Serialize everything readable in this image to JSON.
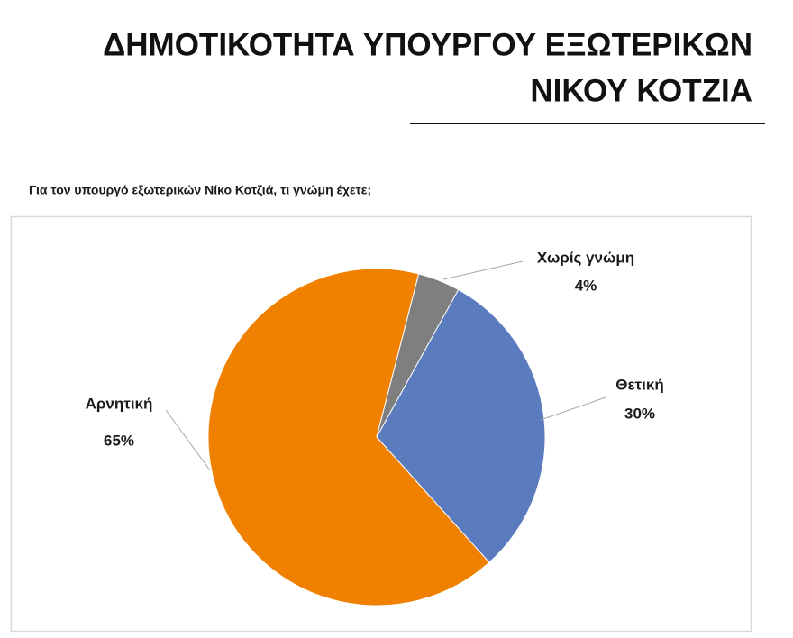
{
  "chart_data": {
    "type": "pie",
    "title": [
      "ΔΗΜΟΤΙΚΟΤΗΤΑ ΥΠΟΥΡΓΟΥ ΕΞΩΤΕΡΙΚΩΝ",
      "ΝΙΚΟΥ ΚΟΤΖΙΑ"
    ],
    "subtitle": "Για τον υπουργό εξωτερικών Νίκο Κοτζιά, τι γνώμη έχετε;",
    "categories": [
      "Θετική",
      "Αρνητική",
      "Χωρίς γνώμη"
    ],
    "values": [
      30,
      65,
      4
    ],
    "value_labels": [
      "30%",
      "65%",
      "4%"
    ],
    "colors": [
      "#5b7bbf",
      "#f08000",
      "#7f7f7f"
    ]
  }
}
